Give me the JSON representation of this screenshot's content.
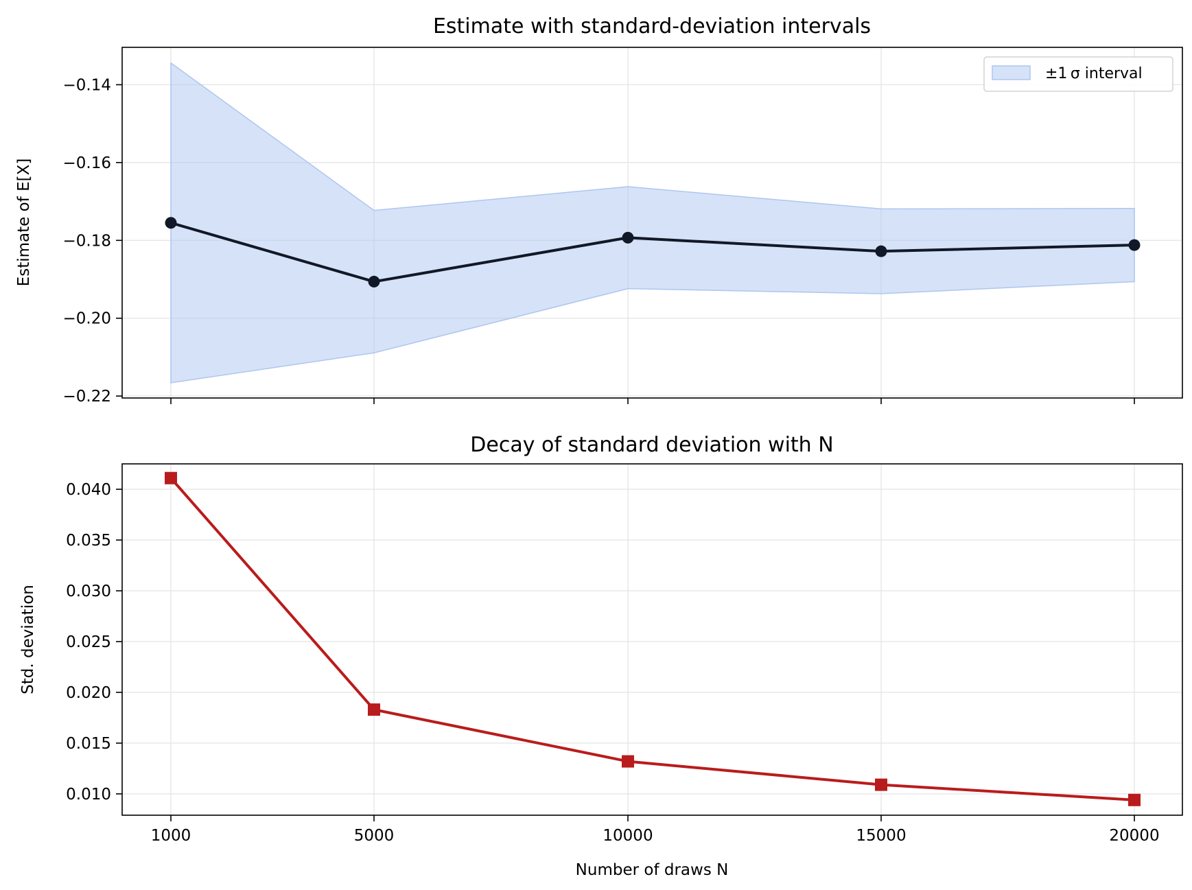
{
  "chart_data": [
    {
      "type": "line",
      "title": "Estimate with standard-deviation intervals",
      "xlabel": "",
      "ylabel": "Estimate of E[X]",
      "x": [
        1000,
        5000,
        10000,
        15000,
        20000
      ],
      "x_tick_labels_visible": false,
      "y_ticks": [
        -0.14,
        -0.16,
        -0.18,
        -0.2,
        -0.22
      ],
      "y_tick_labels": [
        "−0.14",
        "−0.16",
        "−0.18",
        "−0.20",
        "−0.22"
      ],
      "ylim": [
        -0.2205,
        -0.1304
      ],
      "grid": true,
      "legend": {
        "position": "top-right",
        "entries": [
          {
            "label": "±1 σ interval",
            "kind": "band",
            "color": "#aec6f0"
          }
        ]
      },
      "series": [
        {
          "kind": "line-with-markers",
          "marker": "circle",
          "color": "#111827",
          "values": [
            -0.1755,
            -0.1906,
            -0.1793,
            -0.1828,
            -0.1812
          ]
        }
      ],
      "band": {
        "color": "#aec6f0",
        "lower": [
          -0.2166,
          -0.2089,
          -0.1924,
          -0.1937,
          -0.1906
        ],
        "upper": [
          -0.1344,
          -0.1723,
          -0.1662,
          -0.1719,
          -0.1718
        ]
      }
    },
    {
      "type": "line",
      "title": "Decay of standard deviation with N",
      "xlabel": "Number of draws N",
      "ylabel": "Std. deviation",
      "x": [
        1000,
        5000,
        10000,
        15000,
        20000
      ],
      "x_tick_labels": [
        "1000",
        "5000",
        "10000",
        "15000",
        "20000"
      ],
      "y_ticks": [
        0.01,
        0.015,
        0.02,
        0.025,
        0.03,
        0.035,
        0.04
      ],
      "y_tick_labels": [
        "0.010",
        "0.015",
        "0.020",
        "0.025",
        "0.030",
        "0.035",
        "0.040"
      ],
      "ylim": [
        0.0079,
        0.0425
      ],
      "grid": true,
      "series": [
        {
          "kind": "line-with-markers",
          "marker": "square",
          "color": "#b91c1c",
          "values": [
            0.0411,
            0.0183,
            0.0132,
            0.0109,
            0.0094
          ]
        }
      ]
    }
  ]
}
